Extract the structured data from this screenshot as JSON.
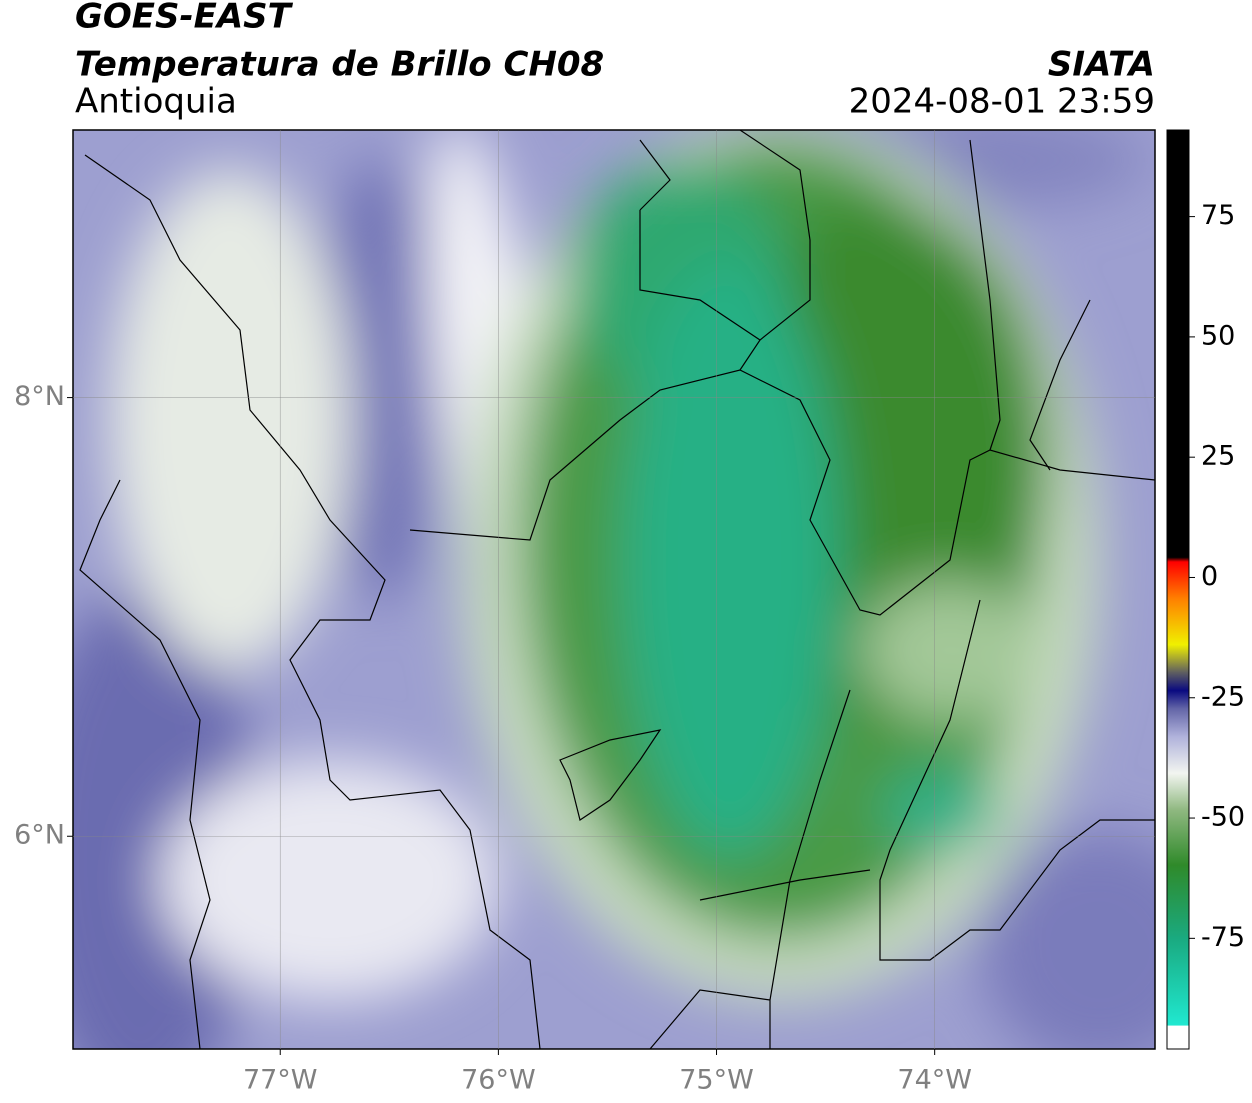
{
  "header": {
    "title": "GOES-EAST",
    "subtitle": "Temperatura de Brillo CH08",
    "region": "Antioquia",
    "source": "SIATA",
    "datetime": "2024-08-01 23:59"
  },
  "map": {
    "xlim": [
      -77.95,
      -72.99
    ],
    "ylim": [
      5.03,
      9.22
    ],
    "xticks": [
      {
        "value": -77,
        "label": "77°W"
      },
      {
        "value": -76,
        "label": "76°W"
      },
      {
        "value": -75,
        "label": "75°W"
      },
      {
        "value": -74,
        "label": "74°W"
      }
    ],
    "yticks": [
      {
        "value": 8,
        "label": "8°N"
      },
      {
        "value": 6,
        "label": "6°N"
      }
    ],
    "grid": true
  },
  "colorbar": {
    "lim": [
      -98,
      93
    ],
    "ticks": [
      75,
      50,
      25,
      0,
      -25,
      -50,
      -75
    ]
  }
}
